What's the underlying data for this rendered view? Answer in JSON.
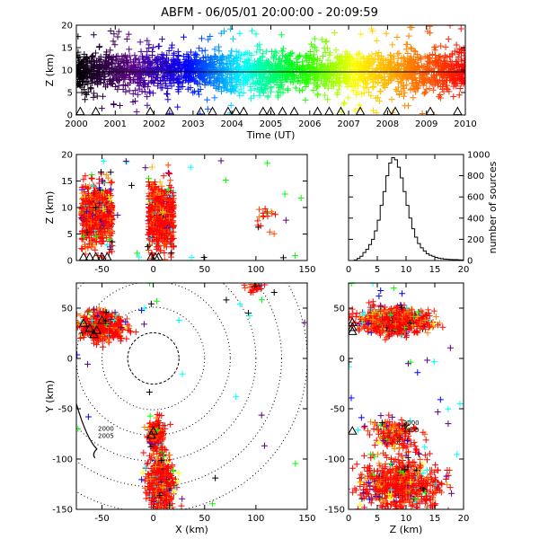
{
  "title": "ABFM - 06/05/01 20:00:00 - 20:09:59",
  "chart_data": [
    {
      "id": "time-height",
      "type": "scatter",
      "xlabel": "Time (UT)",
      "ylabel": "Z (km)",
      "xlim": [
        2000,
        2010
      ],
      "ylim": [
        0,
        20
      ],
      "xticks": [
        "2000",
        "2001",
        "2002",
        "2003",
        "2004",
        "2005",
        "2006",
        "2007",
        "2008",
        "2009",
        "2010"
      ],
      "yticks": [
        "0",
        "5",
        "10",
        "15",
        "20"
      ],
      "colormap": "time-rainbow",
      "colors": [
        "#000000",
        "#5a0082",
        "#0000ff",
        "#00ffff",
        "#00ff00",
        "#ffff00",
        "#ff8000",
        "#ff0000"
      ],
      "reference_line_z": 9.6,
      "sources_core_z": [
        6,
        13
      ],
      "station_marker": "triangle",
      "station_times": [
        2000.1,
        2000.5,
        2001.9,
        2002.4,
        2003.2,
        2003.5,
        2003.9,
        2004.1,
        2004.3,
        2004.8,
        2005.0,
        2005.3,
        2005.6,
        2006.2,
        2006.5,
        2006.8,
        2007.3,
        2008.0,
        2008.2,
        2009.1,
        2009.8
      ]
    },
    {
      "id": "x-z",
      "type": "scatter",
      "xlabel": "",
      "ylabel": "Z (km)",
      "xlim": [
        -75,
        150
      ],
      "ylim": [
        0,
        20
      ],
      "xticks": [
        "-50",
        "0",
        "50",
        "100",
        "150"
      ],
      "yticks": [
        "0",
        "5",
        "10",
        "15",
        "20"
      ],
      "clusters": [
        {
          "x": [
            -70,
            -40
          ],
          "z": [
            3,
            14
          ]
        },
        {
          "x": [
            -5,
            20
          ],
          "z": [
            2,
            15
          ]
        },
        {
          "x": [
            100,
            120
          ],
          "z": [
            5,
            12
          ]
        }
      ]
    },
    {
      "id": "altitude-histogram",
      "type": "bar",
      "xlabel": "",
      "ylabel": "number of sources",
      "xlim": [
        0,
        20
      ],
      "ylim": [
        0,
        1000
      ],
      "xticks": [
        "0",
        "5",
        "10",
        "15",
        "20"
      ],
      "yticks": [
        "0",
        "200",
        "400",
        "600",
        "800",
        "1000"
      ],
      "bin_width": 0.5,
      "categories": [
        0,
        0.5,
        1,
        1.5,
        2,
        2.5,
        3,
        3.5,
        4,
        4.5,
        5,
        5.5,
        6,
        6.5,
        7,
        7.5,
        8,
        8.5,
        9,
        9.5,
        10,
        10.5,
        11,
        11.5,
        12,
        12.5,
        13,
        13.5,
        14,
        14.5,
        15,
        15.5,
        16,
        16.5,
        17,
        17.5,
        18,
        18.5,
        19,
        19.5
      ],
      "values": [
        0,
        0,
        5,
        20,
        40,
        75,
        105,
        150,
        200,
        280,
        380,
        520,
        650,
        800,
        920,
        970,
        950,
        880,
        780,
        650,
        520,
        400,
        300,
        220,
        160,
        120,
        90,
        65,
        50,
        40,
        30,
        22,
        18,
        14,
        12,
        10,
        8,
        8,
        6,
        5
      ]
    },
    {
      "id": "plan-view",
      "type": "scatter",
      "xlabel": "X (km)",
      "ylabel": "Y (km)",
      "xlim": [
        -75,
        150
      ],
      "ylim": [
        -150,
        75
      ],
      "xticks": [
        "-50",
        "0",
        "50",
        "100",
        "150"
      ],
      "yticks": [
        "-150",
        "-100",
        "-50",
        "0",
        "50"
      ],
      "range_rings_km": [
        25,
        50,
        75,
        100,
        125,
        150
      ],
      "clusters": [
        {
          "x": [
            -70,
            -30
          ],
          "y": [
            20,
            45
          ]
        },
        {
          "x": [
            -5,
            10
          ],
          "y": [
            -90,
            -60
          ]
        },
        {
          "x": [
            -5,
            20
          ],
          "y": [
            -150,
            -100
          ]
        }
      ],
      "track_labels": [
        "2000",
        "2005"
      ]
    },
    {
      "id": "z-y",
      "type": "scatter",
      "xlabel": "Z (km)",
      "ylabel": "",
      "xlim": [
        0,
        20
      ],
      "ylim": [
        -150,
        75
      ],
      "xticks": [
        "0",
        "5",
        "10",
        "15",
        "20"
      ],
      "yticks": [
        "-150",
        "-100",
        "-50",
        "0",
        "50"
      ],
      "track_labels": [
        "2000",
        "2005"
      ]
    }
  ]
}
